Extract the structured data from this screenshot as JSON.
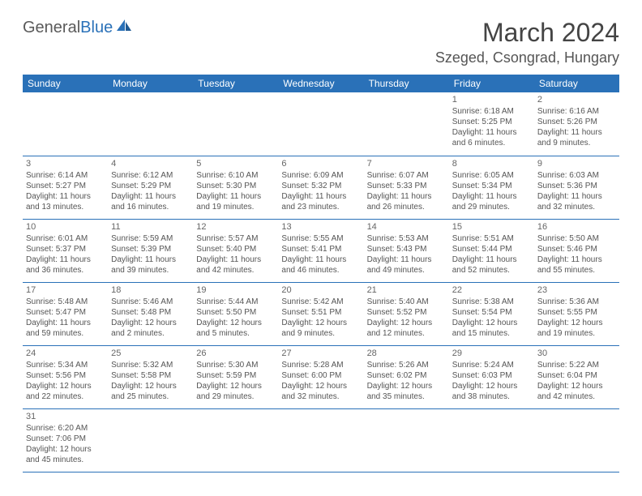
{
  "logo": {
    "word1": "General",
    "word2": "Blue"
  },
  "title": "March 2024",
  "location": "Szeged, Csongrad, Hungary",
  "colors": {
    "header_bg": "#2a71b8",
    "header_fg": "#ffffff",
    "border": "#2a71b8",
    "text": "#555555"
  },
  "day_headers": [
    "Sunday",
    "Monday",
    "Tuesday",
    "Wednesday",
    "Thursday",
    "Friday",
    "Saturday"
  ],
  "weeks": [
    [
      null,
      null,
      null,
      null,
      null,
      {
        "n": "1",
        "sunrise": "6:18 AM",
        "sunset": "5:25 PM",
        "day_h": "11",
        "day_m": "6"
      },
      {
        "n": "2",
        "sunrise": "6:16 AM",
        "sunset": "5:26 PM",
        "day_h": "11",
        "day_m": "9"
      }
    ],
    [
      {
        "n": "3",
        "sunrise": "6:14 AM",
        "sunset": "5:27 PM",
        "day_h": "11",
        "day_m": "13"
      },
      {
        "n": "4",
        "sunrise": "6:12 AM",
        "sunset": "5:29 PM",
        "day_h": "11",
        "day_m": "16"
      },
      {
        "n": "5",
        "sunrise": "6:10 AM",
        "sunset": "5:30 PM",
        "day_h": "11",
        "day_m": "19"
      },
      {
        "n": "6",
        "sunrise": "6:09 AM",
        "sunset": "5:32 PM",
        "day_h": "11",
        "day_m": "23"
      },
      {
        "n": "7",
        "sunrise": "6:07 AM",
        "sunset": "5:33 PM",
        "day_h": "11",
        "day_m": "26"
      },
      {
        "n": "8",
        "sunrise": "6:05 AM",
        "sunset": "5:34 PM",
        "day_h": "11",
        "day_m": "29"
      },
      {
        "n": "9",
        "sunrise": "6:03 AM",
        "sunset": "5:36 PM",
        "day_h": "11",
        "day_m": "32"
      }
    ],
    [
      {
        "n": "10",
        "sunrise": "6:01 AM",
        "sunset": "5:37 PM",
        "day_h": "11",
        "day_m": "36"
      },
      {
        "n": "11",
        "sunrise": "5:59 AM",
        "sunset": "5:39 PM",
        "day_h": "11",
        "day_m": "39"
      },
      {
        "n": "12",
        "sunrise": "5:57 AM",
        "sunset": "5:40 PM",
        "day_h": "11",
        "day_m": "42"
      },
      {
        "n": "13",
        "sunrise": "5:55 AM",
        "sunset": "5:41 PM",
        "day_h": "11",
        "day_m": "46"
      },
      {
        "n": "14",
        "sunrise": "5:53 AM",
        "sunset": "5:43 PM",
        "day_h": "11",
        "day_m": "49"
      },
      {
        "n": "15",
        "sunrise": "5:51 AM",
        "sunset": "5:44 PM",
        "day_h": "11",
        "day_m": "52"
      },
      {
        "n": "16",
        "sunrise": "5:50 AM",
        "sunset": "5:46 PM",
        "day_h": "11",
        "day_m": "55"
      }
    ],
    [
      {
        "n": "17",
        "sunrise": "5:48 AM",
        "sunset": "5:47 PM",
        "day_h": "11",
        "day_m": "59"
      },
      {
        "n": "18",
        "sunrise": "5:46 AM",
        "sunset": "5:48 PM",
        "day_h": "12",
        "day_m": "2"
      },
      {
        "n": "19",
        "sunrise": "5:44 AM",
        "sunset": "5:50 PM",
        "day_h": "12",
        "day_m": "5"
      },
      {
        "n": "20",
        "sunrise": "5:42 AM",
        "sunset": "5:51 PM",
        "day_h": "12",
        "day_m": "9"
      },
      {
        "n": "21",
        "sunrise": "5:40 AM",
        "sunset": "5:52 PM",
        "day_h": "12",
        "day_m": "12"
      },
      {
        "n": "22",
        "sunrise": "5:38 AM",
        "sunset": "5:54 PM",
        "day_h": "12",
        "day_m": "15"
      },
      {
        "n": "23",
        "sunrise": "5:36 AM",
        "sunset": "5:55 PM",
        "day_h": "12",
        "day_m": "19"
      }
    ],
    [
      {
        "n": "24",
        "sunrise": "5:34 AM",
        "sunset": "5:56 PM",
        "day_h": "12",
        "day_m": "22"
      },
      {
        "n": "25",
        "sunrise": "5:32 AM",
        "sunset": "5:58 PM",
        "day_h": "12",
        "day_m": "25"
      },
      {
        "n": "26",
        "sunrise": "5:30 AM",
        "sunset": "5:59 PM",
        "day_h": "12",
        "day_m": "29"
      },
      {
        "n": "27",
        "sunrise": "5:28 AM",
        "sunset": "6:00 PM",
        "day_h": "12",
        "day_m": "32"
      },
      {
        "n": "28",
        "sunrise": "5:26 AM",
        "sunset": "6:02 PM",
        "day_h": "12",
        "day_m": "35"
      },
      {
        "n": "29",
        "sunrise": "5:24 AM",
        "sunset": "6:03 PM",
        "day_h": "12",
        "day_m": "38"
      },
      {
        "n": "30",
        "sunrise": "5:22 AM",
        "sunset": "6:04 PM",
        "day_h": "12",
        "day_m": "42"
      }
    ],
    [
      {
        "n": "31",
        "sunrise": "6:20 AM",
        "sunset": "7:06 PM",
        "day_h": "12",
        "day_m": "45"
      },
      null,
      null,
      null,
      null,
      null,
      null
    ]
  ],
  "labels": {
    "sunrise": "Sunrise: ",
    "sunset": "Sunset: ",
    "daylight1": "Daylight: ",
    "daylight2": " hours",
    "daylight3": "and ",
    "daylight4": " minutes."
  }
}
